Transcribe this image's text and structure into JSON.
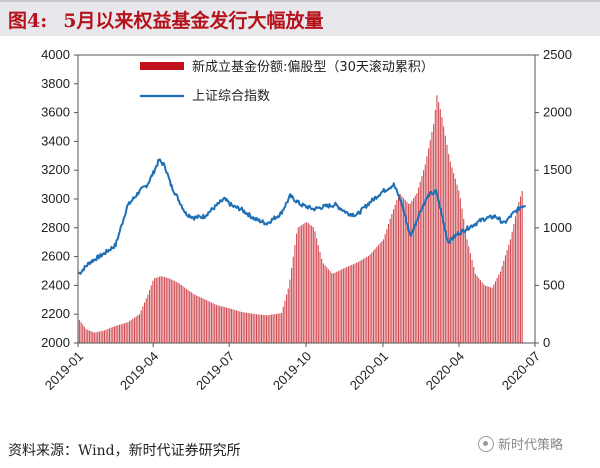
{
  "header": {
    "figure_label": "图4:",
    "title": "5月以来权益基金发行大幅放量"
  },
  "source_note": "资料来源：Wind，新时代证券研究所",
  "watermark": "新时代策略",
  "chart_data": {
    "type": "bar+line",
    "title": "5月以来权益基金发行大幅放量",
    "x_ticks": [
      "2019-01",
      "2019-04",
      "2019-07",
      "2019-10",
      "2020-01",
      "2020-04",
      "2020-07"
    ],
    "y_left": {
      "ticks": [
        2000,
        2200,
        2400,
        2600,
        2800,
        3000,
        3200,
        3400,
        3600,
        3800,
        4000
      ],
      "range": [
        2000,
        4000
      ]
    },
    "y_right": {
      "ticks": [
        0,
        500,
        1000,
        1500,
        2000,
        2500
      ],
      "range": [
        0,
        2500
      ]
    },
    "legend": [
      {
        "name": "新成立基金份额:偏股型（30天滚动累积）",
        "color": "#c0121b",
        "type": "bar",
        "axis": "right"
      },
      {
        "name": "上证综合指数",
        "color": "#1f6fb5",
        "type": "line",
        "axis": "left"
      }
    ],
    "series": [
      {
        "name": "新成立基金份额:偏股型（30天滚动累积）",
        "axis": "right",
        "points": [
          [
            "2019-01-02",
            200
          ],
          [
            "2019-01-10",
            120
          ],
          [
            "2019-01-20",
            90
          ],
          [
            "2019-02-01",
            110
          ],
          [
            "2019-02-15",
            150
          ],
          [
            "2019-03-01",
            180
          ],
          [
            "2019-03-15",
            250
          ],
          [
            "2019-03-25",
            420
          ],
          [
            "2019-04-01",
            560
          ],
          [
            "2019-04-10",
            580
          ],
          [
            "2019-04-20",
            560
          ],
          [
            "2019-05-01",
            520
          ],
          [
            "2019-05-10",
            470
          ],
          [
            "2019-05-20",
            420
          ],
          [
            "2019-06-01",
            380
          ],
          [
            "2019-06-15",
            330
          ],
          [
            "2019-07-01",
            300
          ],
          [
            "2019-07-15",
            270
          ],
          [
            "2019-08-01",
            250
          ],
          [
            "2019-08-15",
            240
          ],
          [
            "2019-09-01",
            260
          ],
          [
            "2019-09-10",
            500
          ],
          [
            "2019-09-20",
            1000
          ],
          [
            "2019-10-01",
            1050
          ],
          [
            "2019-10-10",
            1000
          ],
          [
            "2019-10-20",
            700
          ],
          [
            "2019-11-01",
            600
          ],
          [
            "2019-11-15",
            650
          ],
          [
            "2019-12-01",
            700
          ],
          [
            "2019-12-15",
            760
          ],
          [
            "2020-01-01",
            900
          ],
          [
            "2020-01-10",
            1100
          ],
          [
            "2020-01-20",
            1300
          ],
          [
            "2020-02-01",
            1200
          ],
          [
            "2020-02-10",
            1300
          ],
          [
            "2020-02-20",
            1550
          ],
          [
            "2020-03-01",
            1900
          ],
          [
            "2020-03-05",
            2150
          ],
          [
            "2020-03-10",
            2000
          ],
          [
            "2020-03-20",
            1600
          ],
          [
            "2020-04-01",
            1300
          ],
          [
            "2020-04-10",
            900
          ],
          [
            "2020-04-20",
            600
          ],
          [
            "2020-05-01",
            500
          ],
          [
            "2020-05-10",
            480
          ],
          [
            "2020-05-20",
            620
          ],
          [
            "2020-06-01",
            900
          ],
          [
            "2020-06-10",
            1200
          ],
          [
            "2020-06-15",
            1320
          ]
        ]
      },
      {
        "name": "上证综合指数",
        "axis": "left",
        "points": [
          [
            "2019-01-02",
            2480
          ],
          [
            "2019-01-15",
            2560
          ],
          [
            "2019-02-01",
            2620
          ],
          [
            "2019-02-15",
            2680
          ],
          [
            "2019-03-01",
            2950
          ],
          [
            "2019-03-15",
            3050
          ],
          [
            "2019-03-25",
            3100
          ],
          [
            "2019-04-01",
            3180
          ],
          [
            "2019-04-08",
            3270
          ],
          [
            "2019-04-15",
            3230
          ],
          [
            "2019-04-22",
            3100
          ],
          [
            "2019-05-01",
            3000
          ],
          [
            "2019-05-10",
            2900
          ],
          [
            "2019-05-20",
            2870
          ],
          [
            "2019-06-01",
            2880
          ],
          [
            "2019-06-15",
            2950
          ],
          [
            "2019-06-25",
            3000
          ],
          [
            "2019-07-05",
            2950
          ],
          [
            "2019-07-15",
            2930
          ],
          [
            "2019-08-01",
            2860
          ],
          [
            "2019-08-15",
            2830
          ],
          [
            "2019-09-01",
            2900
          ],
          [
            "2019-09-12",
            3020
          ],
          [
            "2019-09-25",
            2960
          ],
          [
            "2019-10-10",
            2930
          ],
          [
            "2019-10-25",
            2950
          ],
          [
            "2019-11-05",
            2960
          ],
          [
            "2019-11-20",
            2900
          ],
          [
            "2019-12-01",
            2890
          ],
          [
            "2019-12-15",
            2970
          ],
          [
            "2019-12-31",
            3050
          ],
          [
            "2020-01-14",
            3100
          ],
          [
            "2020-01-23",
            2980
          ],
          [
            "2020-02-03",
            2740
          ],
          [
            "2020-02-15",
            2920
          ],
          [
            "2020-02-25",
            3030
          ],
          [
            "2020-03-05",
            3050
          ],
          [
            "2020-03-19",
            2700
          ],
          [
            "2020-03-31",
            2760
          ],
          [
            "2020-04-15",
            2810
          ],
          [
            "2020-04-30",
            2860
          ],
          [
            "2020-05-15",
            2880
          ],
          [
            "2020-05-25",
            2830
          ],
          [
            "2020-06-05",
            2900
          ],
          [
            "2020-06-15",
            2950
          ],
          [
            "2020-06-20",
            2960
          ]
        ]
      }
    ]
  }
}
